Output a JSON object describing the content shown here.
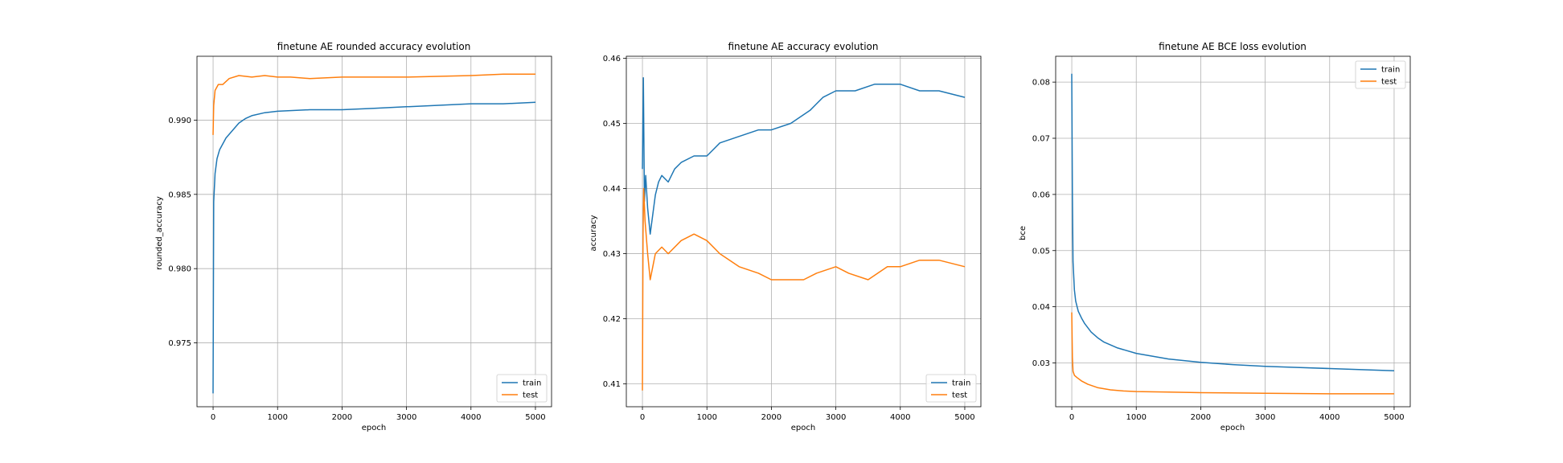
{
  "colors": {
    "train": "#1f77b4",
    "test": "#ff7f0e",
    "grid": "#b0b0b0"
  },
  "chart_data": [
    {
      "type": "line",
      "title": "finetune AE rounded accuracy evolution",
      "xlabel": "epoch",
      "ylabel": "rounded_accuracy",
      "xlim": [
        -250,
        5250
      ],
      "ylim": [
        0.9707,
        0.9943
      ],
      "xticks": [
        0,
        1000,
        2000,
        3000,
        4000,
        5000
      ],
      "yticks": [
        0.975,
        0.98,
        0.985,
        0.99
      ],
      "ytick_labels": [
        "0.975",
        "0.980",
        "0.985",
        "0.990"
      ],
      "grid": true,
      "legend": "lower-right",
      "series": [
        {
          "name": "train",
          "x": [
            0,
            10,
            30,
            60,
            100,
            150,
            200,
            300,
            400,
            500,
            600,
            800,
            1000,
            1500,
            2000,
            2500,
            3000,
            3500,
            4000,
            4500,
            5000
          ],
          "y": [
            0.9716,
            0.9845,
            0.9864,
            0.9874,
            0.988,
            0.9884,
            0.9888,
            0.9893,
            0.9898,
            0.9901,
            0.9903,
            0.9905,
            0.9906,
            0.9907,
            0.9907,
            0.9908,
            0.9909,
            0.991,
            0.9911,
            0.9911,
            0.9912
          ]
        },
        {
          "name": "test",
          "x": [
            0,
            10,
            30,
            80,
            150,
            250,
            400,
            600,
            800,
            1000,
            1200,
            1500,
            2000,
            3000,
            4000,
            4500,
            5000
          ],
          "y": [
            0.989,
            0.991,
            0.992,
            0.9924,
            0.9924,
            0.9928,
            0.993,
            0.9929,
            0.993,
            0.9929,
            0.9929,
            0.9928,
            0.9929,
            0.9929,
            0.993,
            0.9931,
            0.9931
          ]
        }
      ]
    },
    {
      "type": "line",
      "title": "finetune AE accuracy evolution",
      "xlabel": "epoch",
      "ylabel": "accuracy",
      "xlim": [
        -250,
        5250
      ],
      "ylim": [
        0.4065,
        0.4603
      ],
      "xticks": [
        0,
        1000,
        2000,
        3000,
        4000,
        5000
      ],
      "yticks": [
        0.41,
        0.42,
        0.43,
        0.44,
        0.45,
        0.46
      ],
      "ytick_labels": [
        "0.41",
        "0.42",
        "0.43",
        "0.44",
        "0.45",
        "0.46"
      ],
      "grid": true,
      "legend": "lower-right",
      "series": [
        {
          "name": "train",
          "x": [
            0,
            15,
            30,
            50,
            80,
            120,
            160,
            200,
            250,
            300,
            400,
            500,
            600,
            800,
            1000,
            1200,
            1500,
            1800,
            2000,
            2300,
            2600,
            2800,
            3000,
            3300,
            3600,
            4000,
            4300,
            4600,
            5000
          ],
          "y": [
            0.443,
            0.457,
            0.438,
            0.442,
            0.437,
            0.433,
            0.436,
            0.439,
            0.441,
            0.442,
            0.441,
            0.443,
            0.444,
            0.445,
            0.445,
            0.447,
            0.448,
            0.449,
            0.449,
            0.45,
            0.452,
            0.454,
            0.455,
            0.455,
            0.456,
            0.456,
            0.455,
            0.455,
            0.454
          ]
        },
        {
          "name": "test",
          "x": [
            0,
            10,
            20,
            40,
            80,
            120,
            160,
            200,
            300,
            400,
            600,
            800,
            1000,
            1200,
            1500,
            1800,
            2000,
            2500,
            2700,
            3000,
            3200,
            3500,
            3800,
            4000,
            4300,
            4600,
            5000
          ],
          "y": [
            0.409,
            0.433,
            0.44,
            0.435,
            0.43,
            0.426,
            0.428,
            0.43,
            0.431,
            0.43,
            0.432,
            0.433,
            0.432,
            0.43,
            0.428,
            0.427,
            0.426,
            0.426,
            0.427,
            0.428,
            0.427,
            0.426,
            0.428,
            0.428,
            0.429,
            0.429,
            0.428
          ]
        }
      ]
    },
    {
      "type": "line",
      "title": "finetune AE BCE loss evolution",
      "xlabel": "epoch",
      "ylabel": "bce",
      "xlim": [
        -250,
        5250
      ],
      "ylim": [
        0.0222,
        0.0846
      ],
      "xticks": [
        0,
        1000,
        2000,
        3000,
        4000,
        5000
      ],
      "yticks": [
        0.03,
        0.04,
        0.05,
        0.06,
        0.07,
        0.08
      ],
      "ytick_labels": [
        "0.03",
        "0.04",
        "0.05",
        "0.06",
        "0.07",
        "0.08"
      ],
      "grid": true,
      "legend": "upper-right",
      "series": [
        {
          "name": "train",
          "x": [
            0,
            10,
            20,
            40,
            60,
            100,
            150,
            200,
            300,
            400,
            500,
            700,
            1000,
            1500,
            2000,
            2500,
            3000,
            3500,
            4000,
            4500,
            5000
          ],
          "y": [
            0.0815,
            0.06,
            0.048,
            0.043,
            0.041,
            0.0392,
            0.038,
            0.037,
            0.0355,
            0.0345,
            0.0337,
            0.0327,
            0.0317,
            0.0307,
            0.0301,
            0.0297,
            0.0294,
            0.0292,
            0.029,
            0.0288,
            0.0286
          ]
        },
        {
          "name": "test",
          "x": [
            0,
            10,
            20,
            40,
            80,
            150,
            250,
            400,
            600,
            800,
            1000,
            1500,
            2000,
            3000,
            4000,
            5000
          ],
          "y": [
            0.039,
            0.031,
            0.0285,
            0.0278,
            0.0274,
            0.0268,
            0.0262,
            0.0256,
            0.0252,
            0.025,
            0.0249,
            0.0248,
            0.0247,
            0.0246,
            0.0245,
            0.0245
          ]
        }
      ]
    }
  ]
}
